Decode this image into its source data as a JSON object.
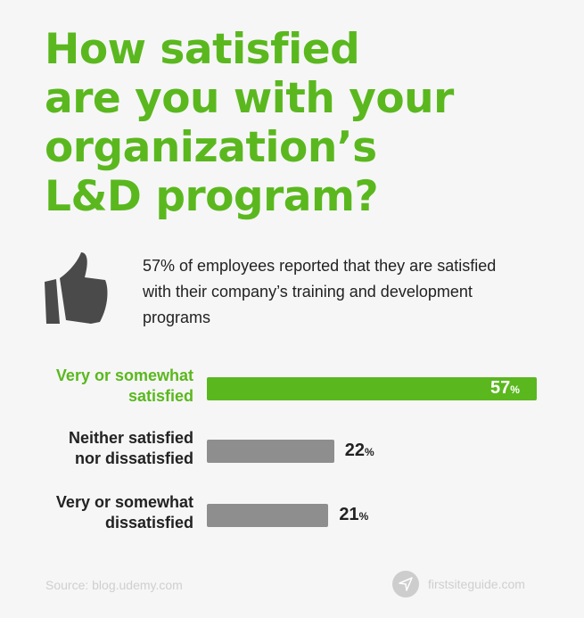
{
  "title_lines": [
    "How satisfied",
    "are you with your",
    "organization’s",
    "L&D program?"
  ],
  "summary": "57% of employees reported that they are satisfied with their company’s training and development programs",
  "colors": {
    "accent": "#5ab81e",
    "neutral_bar": "#8e8e8e",
    "text": "#222222",
    "footer": "#cfcfcf"
  },
  "icons": {
    "summary": "thumbs-up-icon",
    "brand": "paper-plane-icon"
  },
  "chart_data": {
    "type": "bar",
    "orientation": "horizontal",
    "categories": [
      "Very or somewhat satisfied",
      "Neither satisfied nor dissatisfied",
      "Very or somewhat dissatisfied"
    ],
    "label_lines": [
      [
        "Very or somewhat",
        "satisfied"
      ],
      [
        "Neither satisfied",
        "nor dissatisfied"
      ],
      [
        "Very or somewhat",
        "dissatisfied"
      ]
    ],
    "values": [
      57,
      22,
      21
    ],
    "value_labels": [
      "57",
      "22",
      "21"
    ],
    "unit": "%",
    "highlight_index": 0,
    "grid": false
  },
  "footer": {
    "source": "Source: blog.udemy.com",
    "brand": "firstsiteguide.com"
  }
}
